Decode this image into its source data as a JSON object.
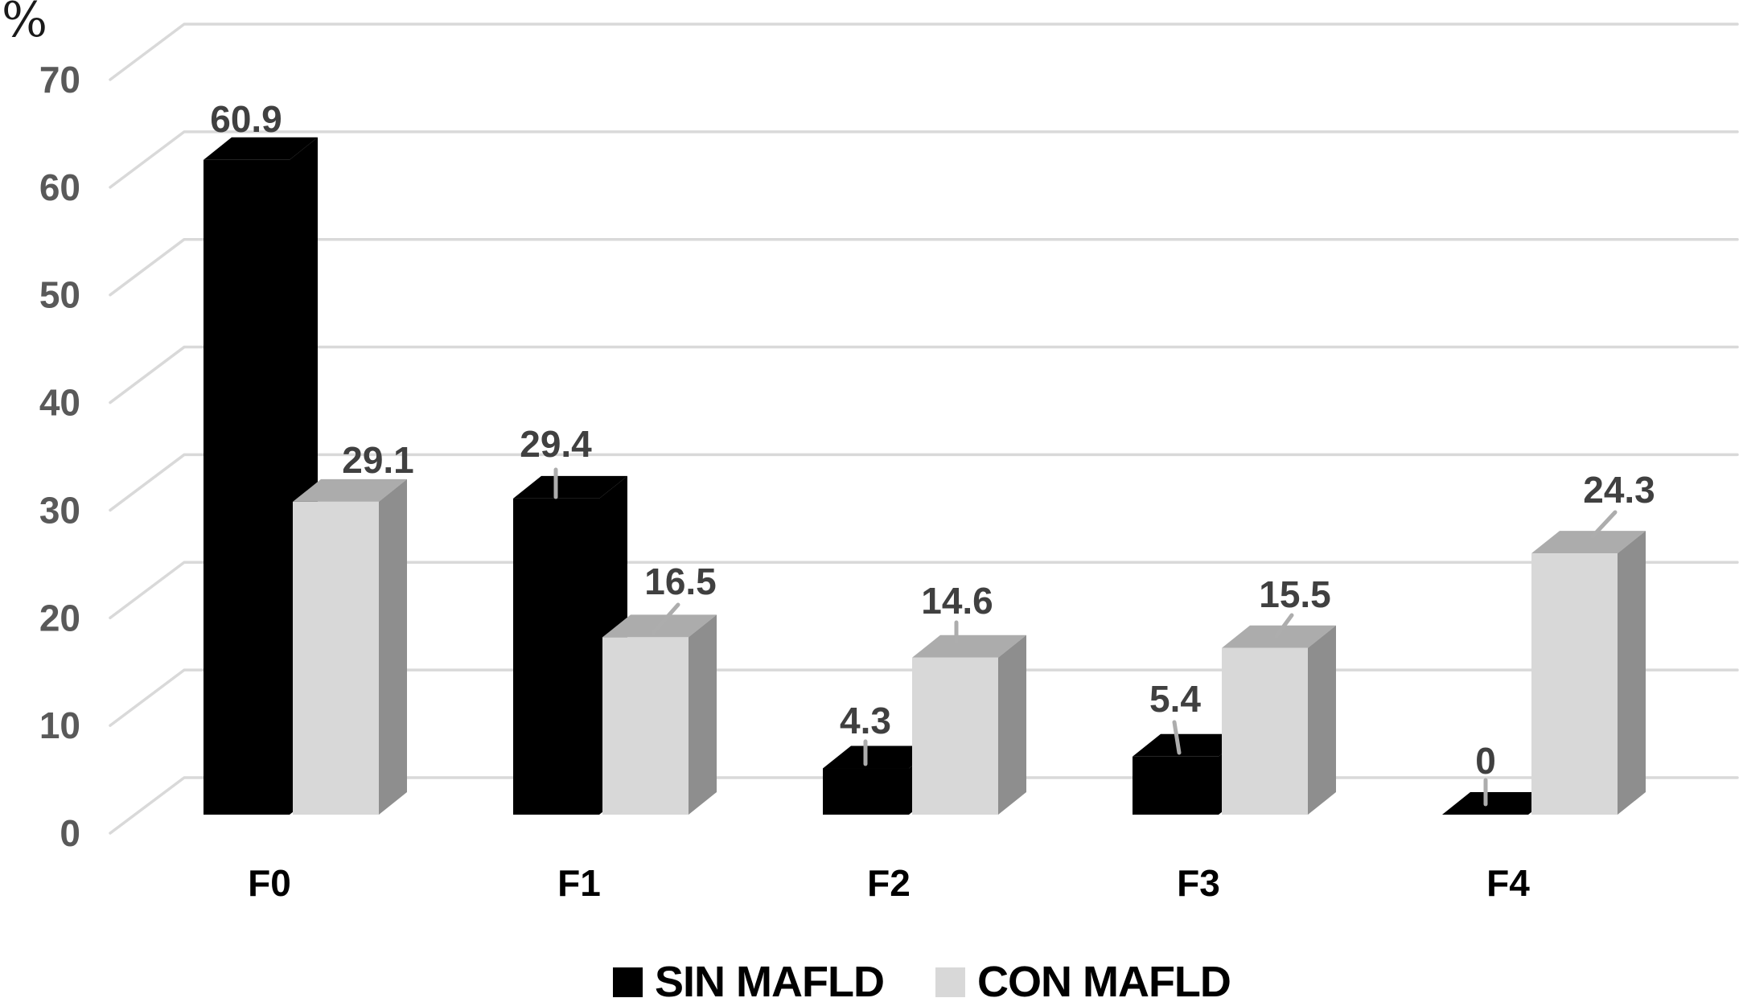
{
  "chart_data": {
    "type": "bar",
    "style": "3d-column",
    "title": "",
    "ylabel": "%",
    "categories": [
      "F0",
      "F1",
      "F2",
      "F3",
      "F4"
    ],
    "series": [
      {
        "name": "SIN MAFLD",
        "color": "#000000",
        "values": [
          60.9,
          29.4,
          4.3,
          5.4,
          0
        ]
      },
      {
        "name": "CON MAFLD",
        "color": "#d8d8d8",
        "values": [
          29.1,
          16.5,
          14.6,
          15.5,
          24.3
        ]
      }
    ],
    "yticks": [
      0,
      10,
      20,
      30,
      40,
      50,
      60,
      70
    ],
    "ylim": [
      0,
      70
    ],
    "grid": true,
    "legend_position": "bottom",
    "gridline_color": "#d9d9d9",
    "tick_label_color": "#595959",
    "data_label_color": "#404040"
  }
}
